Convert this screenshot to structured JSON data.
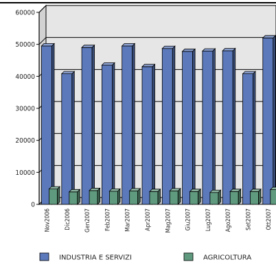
{
  "chart_data": {
    "type": "bar",
    "title": "",
    "xlabel": "",
    "ylabel": "",
    "ylim": [
      0,
      60000
    ],
    "yticks": [
      0,
      10000,
      20000,
      30000,
      40000,
      50000,
      60000
    ],
    "ytick_labels": [
      "0",
      "10000",
      "20000",
      "30000",
      "40000",
      "50000",
      "60000"
    ],
    "grid": true,
    "legend_position": "bottom",
    "categories": [
      "Nov2006",
      "Dic2006",
      "Gen2007",
      "Feb2007",
      "Mar2007",
      "Apr2007",
      "Mag2007",
      "Giu2007",
      "Lug2007",
      "Ago2007",
      "Set2007",
      "Ott2007"
    ],
    "series": [
      {
        "name": "INDUSTRIA E SERVIZI",
        "color": "#5b79bb",
        "values": [
          49500,
          40800,
          49000,
          43500,
          49500,
          43000,
          48700,
          47800,
          47900,
          48000,
          40800,
          52000
        ]
      },
      {
        "name": "AGRICOLTURA",
        "color": "#5f9a7e",
        "values": [
          4800,
          3900,
          4300,
          4100,
          4200,
          4000,
          4200,
          4000,
          3700,
          4000,
          4000,
          4600
        ]
      }
    ]
  }
}
